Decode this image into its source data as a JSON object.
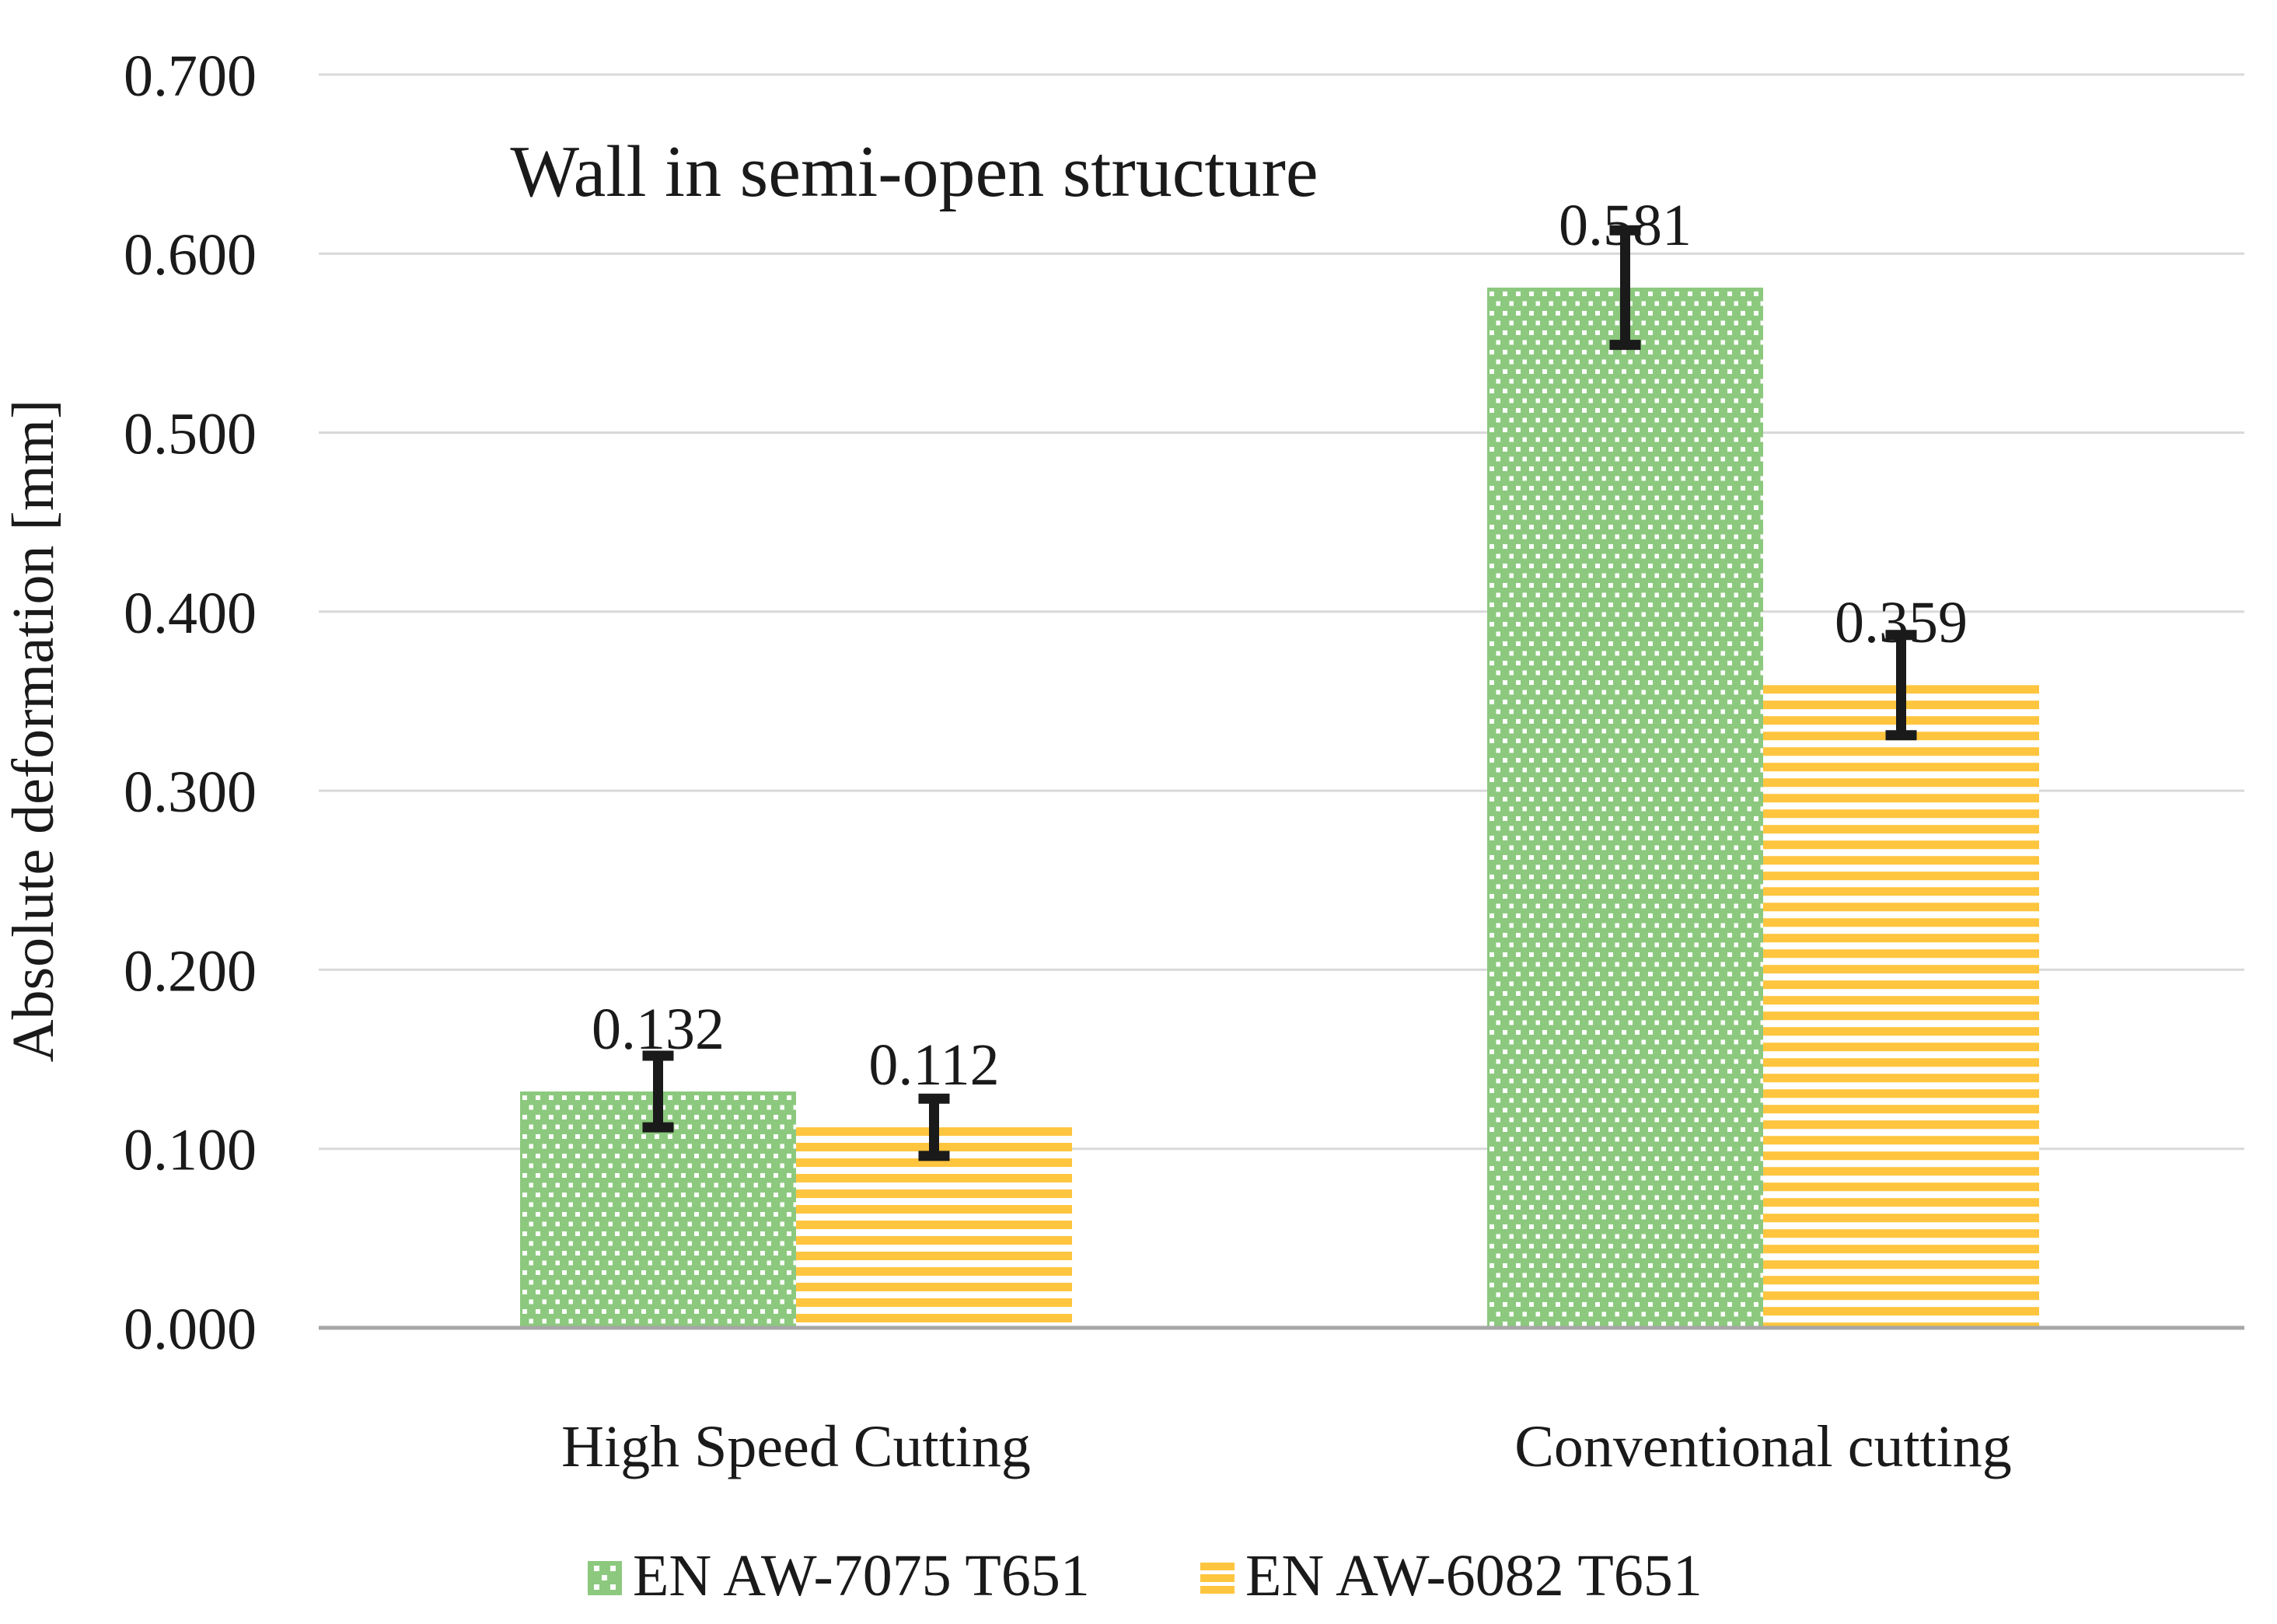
{
  "chart_data": {
    "type": "bar",
    "title": "Wall in semi-open structure",
    "ylabel": "Absolute deformation [mm]",
    "xlabel": "",
    "categories": [
      "High Speed Cutting",
      "Conventional cutting"
    ],
    "series": [
      {
        "name": "EN AW-7075 T651",
        "pattern": "white-dots-on-green",
        "color": "#8CC97E",
        "values": [
          0.132,
          0.581
        ],
        "value_labels": [
          "0.132",
          "0.581"
        ],
        "error_bars": [
          0.02,
          0.032
        ]
      },
      {
        "name": "EN AW-6082 T651",
        "pattern": "yellow-horizontal-stripes",
        "color": "#FFC53E",
        "values": [
          0.112,
          0.359
        ],
        "value_labels": [
          "0.112",
          "0.359"
        ],
        "error_bars": [
          0.016,
          0.028
        ]
      }
    ],
    "ylim": [
      0,
      0.7
    ],
    "ytick_step": 0.1,
    "ytick_labels": [
      "0.000",
      "0.100",
      "0.200",
      "0.300",
      "0.400",
      "0.500",
      "0.600",
      "0.700"
    ],
    "grid": true,
    "legend_position": "bottom"
  },
  "style": {
    "background": "#ffffff",
    "text_color": "#1a1a1a",
    "gridline_color": "#d9d9d9",
    "axis_line_color": "#a6a6a6",
    "error_bar_color": "#1a1a1a",
    "dot_color": "#ffffff",
    "stripe_gap_color": "#ffffff"
  }
}
